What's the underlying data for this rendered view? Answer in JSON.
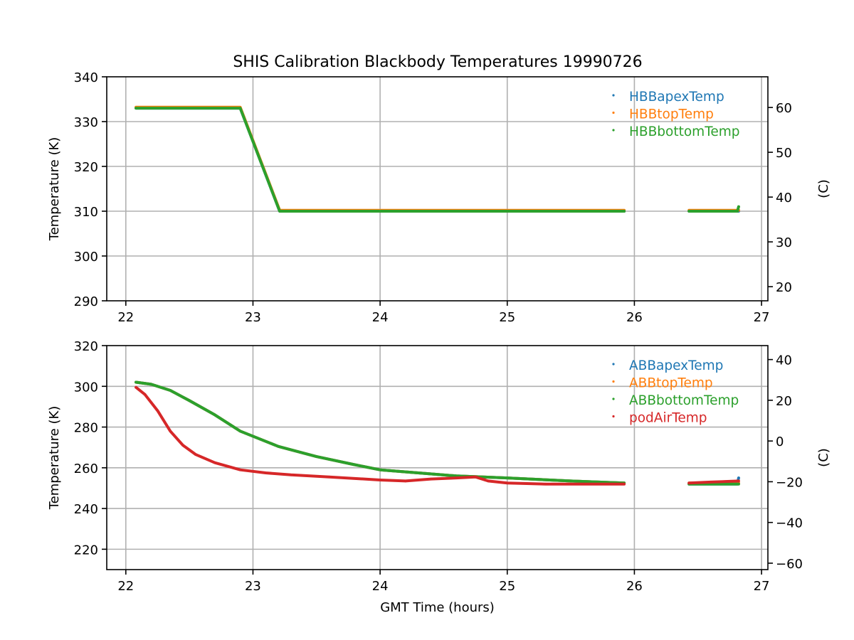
{
  "colors": {
    "blue": "#1f77b4",
    "orange": "#ff7f0e",
    "green": "#2ca02c",
    "red": "#d62728",
    "grid": "#b0b0b0",
    "axis": "#000000"
  },
  "chart_data": [
    {
      "type": "scatter",
      "title": "SHIS Calibration Blackbody Temperatures 19990726",
      "xlabel": "",
      "ylabel": "Temperature (K)",
      "ylabel_right": "(C)",
      "xlim": [
        21.85,
        27.05
      ],
      "ylim": [
        290,
        340
      ],
      "ylim_right": [
        16.85,
        66.85
      ],
      "xticks": [
        22,
        23,
        24,
        25,
        26,
        27
      ],
      "yticks": [
        290,
        300,
        310,
        320,
        330,
        340
      ],
      "yticks_right": [
        20,
        30,
        40,
        50,
        60
      ],
      "grid": true,
      "legend": "top-right",
      "series": [
        {
          "name": "HBBapexTemp",
          "color": "blue",
          "segments": [
            [
              [
                22.08,
                333.0
              ],
              [
                22.9,
                333.0
              ],
              [
                23.21,
                310.0
              ],
              [
                25.92,
                310.0
              ]
            ],
            [
              [
                26.43,
                310.0
              ],
              [
                26.82,
                310.0
              ]
            ]
          ]
        },
        {
          "name": "HBBtopTemp",
          "color": "orange",
          "segments": [
            [
              [
                22.08,
                333.2
              ],
              [
                22.9,
                333.2
              ],
              [
                23.21,
                310.2
              ],
              [
                25.92,
                310.2
              ]
            ],
            [
              [
                26.43,
                310.2
              ],
              [
                26.82,
                310.2
              ]
            ]
          ]
        },
        {
          "name": "HBBbottomTemp",
          "color": "green",
          "segments": [
            [
              [
                22.08,
                333.0
              ],
              [
                22.9,
                333.0
              ],
              [
                23.21,
                310.0
              ],
              [
                25.92,
                310.0
              ]
            ],
            [
              [
                26.43,
                310.0
              ],
              [
                26.81,
                310.0
              ],
              [
                26.82,
                311.0
              ]
            ]
          ]
        }
      ]
    },
    {
      "type": "scatter",
      "title": "",
      "xlabel": "GMT Time (hours)",
      "ylabel": "Temperature (K)",
      "ylabel_right": "(C)",
      "xlim": [
        21.85,
        27.05
      ],
      "ylim": [
        210,
        320
      ],
      "ylim_right": [
        -63.15,
        46.85
      ],
      "xticks": [
        22,
        23,
        24,
        25,
        26,
        27
      ],
      "yticks": [
        220,
        240,
        260,
        280,
        300,
        320
      ],
      "yticks_right": [
        -60,
        -40,
        -20,
        0,
        20,
        40
      ],
      "grid": true,
      "legend": "top-right",
      "series": [
        {
          "name": "ABBapexTemp",
          "color": "blue",
          "segments": [
            [
              [
                22.08,
                302.0
              ],
              [
                22.2,
                301.0
              ],
              [
                22.35,
                298.0
              ],
              [
                22.5,
                293.0
              ],
              [
                22.7,
                286.0
              ],
              [
                22.9,
                278.0
              ],
              [
                23.2,
                270.5
              ],
              [
                23.5,
                265.5
              ],
              [
                23.8,
                261.5
              ],
              [
                24.0,
                259.0
              ],
              [
                24.3,
                257.5
              ],
              [
                24.6,
                256.0
              ],
              [
                25.0,
                255.0
              ],
              [
                25.5,
                253.5
              ],
              [
                25.92,
                252.5
              ]
            ],
            [
              [
                26.43,
                252.0
              ],
              [
                26.81,
                252.0
              ],
              [
                26.82,
                255.0
              ]
            ]
          ]
        },
        {
          "name": "ABBtopTemp",
          "color": "orange",
          "segments": [
            [
              [
                22.08,
                302.0
              ],
              [
                22.2,
                301.0
              ],
              [
                22.35,
                298.0
              ],
              [
                22.5,
                293.0
              ],
              [
                22.7,
                286.0
              ],
              [
                22.9,
                278.0
              ],
              [
                23.2,
                270.5
              ],
              [
                23.5,
                265.5
              ],
              [
                23.8,
                261.5
              ],
              [
                24.0,
                259.0
              ],
              [
                24.3,
                257.5
              ],
              [
                24.6,
                256.0
              ],
              [
                25.0,
                255.0
              ],
              [
                25.5,
                253.5
              ],
              [
                25.92,
                252.5
              ]
            ],
            [
              [
                26.43,
                252.5
              ],
              [
                26.82,
                252.5
              ]
            ]
          ]
        },
        {
          "name": "ABBbottomTemp",
          "color": "green",
          "segments": [
            [
              [
                22.08,
                302.0
              ],
              [
                22.2,
                301.0
              ],
              [
                22.35,
                298.0
              ],
              [
                22.5,
                293.0
              ],
              [
                22.7,
                286.0
              ],
              [
                22.9,
                278.0
              ],
              [
                23.2,
                270.5
              ],
              [
                23.5,
                265.5
              ],
              [
                23.8,
                261.5
              ],
              [
                24.0,
                259.0
              ],
              [
                24.3,
                257.5
              ],
              [
                24.6,
                256.0
              ],
              [
                25.0,
                255.0
              ],
              [
                25.5,
                253.5
              ],
              [
                25.92,
                252.5
              ]
            ],
            [
              [
                26.43,
                252.0
              ],
              [
                26.82,
                252.0
              ]
            ]
          ]
        },
        {
          "name": "podAirTemp",
          "color": "red",
          "segments": [
            [
              [
                22.08,
                299.5
              ],
              [
                22.15,
                296.0
              ],
              [
                22.25,
                288.0
              ],
              [
                22.35,
                278.0
              ],
              [
                22.45,
                271.0
              ],
              [
                22.55,
                266.5
              ],
              [
                22.7,
                262.5
              ],
              [
                22.9,
                259.0
              ],
              [
                23.1,
                257.5
              ],
              [
                23.3,
                256.5
              ],
              [
                23.6,
                255.5
              ],
              [
                24.0,
                254.0
              ],
              [
                24.2,
                253.5
              ],
              [
                24.4,
                254.5
              ],
              [
                24.6,
                255.0
              ],
              [
                24.75,
                255.5
              ],
              [
                24.85,
                253.5
              ],
              [
                25.0,
                252.5
              ],
              [
                25.3,
                252.0
              ],
              [
                25.6,
                252.0
              ],
              [
                25.92,
                252.0
              ]
            ],
            [
              [
                26.43,
                252.5
              ],
              [
                26.6,
                253.0
              ],
              [
                26.82,
                253.5
              ]
            ]
          ]
        }
      ]
    }
  ]
}
